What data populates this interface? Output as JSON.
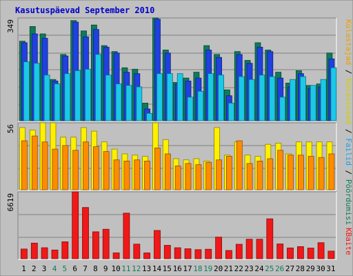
{
  "chart_data": {
    "type": "bar",
    "title": "Kasutuspäevad September 2010",
    "categories": [
      "1",
      "2",
      "3",
      "4",
      "5",
      "6",
      "7",
      "8",
      "9",
      "10",
      "11",
      "12",
      "13",
      "14",
      "15",
      "16",
      "17",
      "18",
      "19",
      "20",
      "21",
      "22",
      "23",
      "24",
      "25",
      "26",
      "27",
      "28",
      "29",
      "30",
      "31"
    ],
    "weekend_days": [
      4,
      5,
      11,
      12,
      18,
      19,
      25,
      26
    ],
    "panels": [
      {
        "max_label": "349",
        "ymax": 349,
        "series_label": "Külastajad / Külastused / Failid / Pöördumisi",
        "series": [
          {
            "name": "Pöördumisi",
            "color": "#0F7B5B",
            "values": [
              270,
              320,
              295,
              140,
              225,
              340,
              305,
              325,
              255,
              235,
              180,
              175,
              60,
              349,
              240,
              130,
              145,
              165,
              255,
              225,
              105,
              235,
              205,
              265,
              240,
              165,
              128,
              170,
              120,
              125,
              230
            ]
          },
          {
            "name": "Failid",
            "color": "#2040E0",
            "values": [
              265,
              295,
              280,
              135,
              220,
              335,
              285,
              310,
              250,
              230,
              165,
              160,
              40,
              345,
              230,
              125,
              135,
              145,
              240,
              215,
              85,
              225,
              195,
              250,
              235,
              145,
              115,
              160,
              110,
              115,
              210
            ]
          },
          {
            "name": "Külastused",
            "color": "#1CC8E8",
            "values": [
              200,
              195,
              155,
              125,
              160,
              170,
              175,
              225,
              155,
              125,
              120,
              115,
              25,
              160,
              160,
              160,
              80,
              100,
              160,
              155,
              60,
              150,
              140,
              155,
              150,
              80,
              140,
              150,
              120,
              140,
              180
            ]
          }
        ]
      },
      {
        "max_label": "56",
        "ymax": 56,
        "series": [
          {
            "name": "Külastajad",
            "color": "#FFF000",
            "values": [
              52,
              50,
              56,
              56,
              44,
              44,
              52,
              49,
              40,
              34,
              30,
              29,
              28,
              56,
              42,
              26,
              25,
              26,
              24,
              52,
              29,
              40,
              29,
              28,
              38,
              39,
              30,
              40,
              40,
              40,
              40
            ]
          },
          {
            "name": "Külastused",
            "color": "#FF8C00",
            "values": [
              41,
              45,
              40,
              34,
              37,
              33,
              40,
              36,
              32,
              25,
              24,
              25,
              24,
              35,
              30,
              20,
              22,
              21,
              23,
              25,
              28,
              41,
              22,
              24,
              26,
              33,
              29,
              29,
              28,
              27,
              30
            ]
          }
        ]
      },
      {
        "max_label": "6619",
        "ymax": 6619,
        "series_label": "KBaite",
        "series": [
          {
            "name": "KBaite",
            "color": "#F01818",
            "values": [
              960,
              1550,
              1090,
              870,
              1680,
              6619,
              5070,
              2670,
              2920,
              580,
              4510,
              1450,
              580,
              2800,
              1330,
              1090,
              990,
              900,
              940,
              2140,
              820,
              1430,
              1930,
              1930,
              3950,
              1470,
              1070,
              1200,
              1060,
              1590,
              760
            ]
          }
        ]
      }
    ]
  }
}
